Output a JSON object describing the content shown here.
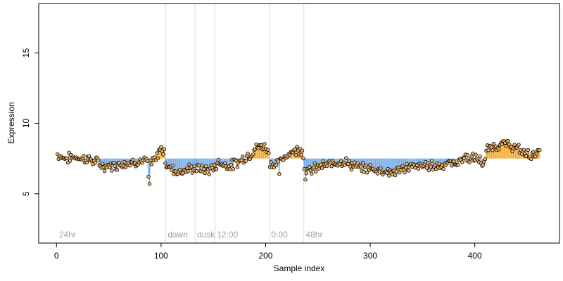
{
  "chart_data": {
    "type": "scatter",
    "xlabel": "Sample index",
    "ylabel": "Expression",
    "xlim": [
      -17,
      481
    ],
    "ylim": [
      1.5,
      18.5
    ],
    "x_ticks": [
      0,
      100,
      200,
      300,
      400
    ],
    "y_ticks": [
      5,
      10,
      15
    ],
    "grid": false,
    "baseline": 7.5,
    "colors": {
      "above_baseline_bar": "#f5a623",
      "below_baseline_bar": "#6fa8e6",
      "point_fill": "#f5b866",
      "point_edge": "#000000",
      "segment_line": "#dcdcdc",
      "segment_label": "#a0a0a0"
    },
    "segments": [
      {
        "label": "24hr",
        "start": 1
      },
      {
        "label": "dawn",
        "start": 105
      },
      {
        "label": "dusk",
        "start": 133
      },
      {
        "label": "12:00",
        "start": 152
      },
      {
        "label": "0:00",
        "start": 204
      },
      {
        "label": "48hr",
        "start": 237
      }
    ],
    "series": [
      {
        "n": 462,
        "anchors": [
          [
            1,
            7.8
          ],
          [
            5,
            7.6
          ],
          [
            10,
            7.5
          ],
          [
            15,
            7.6
          ],
          [
            20,
            7.6
          ],
          [
            25,
            7.5
          ],
          [
            30,
            7.5
          ],
          [
            35,
            7.3
          ],
          [
            40,
            7.2
          ],
          [
            45,
            6.9
          ],
          [
            50,
            7.0
          ],
          [
            55,
            7.0
          ],
          [
            60,
            7.1
          ],
          [
            65,
            7.2
          ],
          [
            70,
            7.2
          ],
          [
            75,
            7.3
          ],
          [
            80,
            7.3
          ],
          [
            85,
            7.3
          ],
          [
            90,
            7.2
          ],
          [
            95,
            7.4
          ],
          [
            98,
            8.0
          ],
          [
            100,
            8.3
          ],
          [
            103,
            7.9
          ],
          [
            105,
            7.0
          ],
          [
            110,
            6.8
          ],
          [
            115,
            6.6
          ],
          [
            120,
            6.6
          ],
          [
            125,
            6.7
          ],
          [
            130,
            6.8
          ],
          [
            135,
            6.8
          ],
          [
            140,
            6.7
          ],
          [
            145,
            6.7
          ],
          [
            150,
            6.8
          ],
          [
            155,
            7.2
          ],
          [
            160,
            7.1
          ],
          [
            165,
            7.0
          ],
          [
            170,
            7.1
          ],
          [
            175,
            7.3
          ],
          [
            180,
            7.6
          ],
          [
            185,
            7.8
          ],
          [
            190,
            8.2
          ],
          [
            195,
            8.4
          ],
          [
            200,
            8.3
          ],
          [
            203,
            8.0
          ],
          [
            204,
            7.2
          ],
          [
            210,
            7.0
          ],
          [
            215,
            7.3
          ],
          [
            220,
            7.8
          ],
          [
            225,
            8.0
          ],
          [
            230,
            8.1
          ],
          [
            235,
            8.2
          ],
          [
            237,
            6.9
          ],
          [
            240,
            6.6
          ],
          [
            245,
            6.7
          ],
          [
            250,
            6.9
          ],
          [
            255,
            7.0
          ],
          [
            260,
            7.0
          ],
          [
            265,
            7.2
          ],
          [
            270,
            7.3
          ],
          [
            275,
            7.3
          ],
          [
            280,
            7.1
          ],
          [
            285,
            7.0
          ],
          [
            290,
            6.8
          ],
          [
            295,
            6.8
          ],
          [
            300,
            6.8
          ],
          [
            305,
            6.7
          ],
          [
            310,
            6.7
          ],
          [
            315,
            6.6
          ],
          [
            320,
            6.5
          ],
          [
            325,
            6.6
          ],
          [
            330,
            6.7
          ],
          [
            335,
            6.9
          ],
          [
            340,
            6.9
          ],
          [
            345,
            6.9
          ],
          [
            350,
            7.0
          ],
          [
            355,
            7.0
          ],
          [
            360,
            7.0
          ],
          [
            365,
            7.0
          ],
          [
            370,
            7.1
          ],
          [
            375,
            7.2
          ],
          [
            380,
            7.1
          ],
          [
            385,
            7.3
          ],
          [
            390,
            7.6
          ],
          [
            395,
            7.5
          ],
          [
            400,
            7.5
          ],
          [
            405,
            7.4
          ],
          [
            408,
            7.1
          ],
          [
            410,
            7.3
          ],
          [
            412,
            8.2
          ],
          [
            415,
            8.3
          ],
          [
            420,
            8.4
          ],
          [
            425,
            8.5
          ],
          [
            430,
            8.5
          ],
          [
            435,
            8.4
          ],
          [
            440,
            8.2
          ],
          [
            445,
            8.0
          ],
          [
            450,
            7.8
          ],
          [
            455,
            7.8
          ],
          [
            460,
            7.9
          ],
          [
            462,
            8.0
          ]
        ],
        "jitter": 0.28,
        "outliers": [
          [
            89,
            5.7
          ],
          [
            88,
            6.2
          ],
          [
            213,
            6.4
          ],
          [
            238,
            6.0
          ]
        ]
      }
    ]
  }
}
